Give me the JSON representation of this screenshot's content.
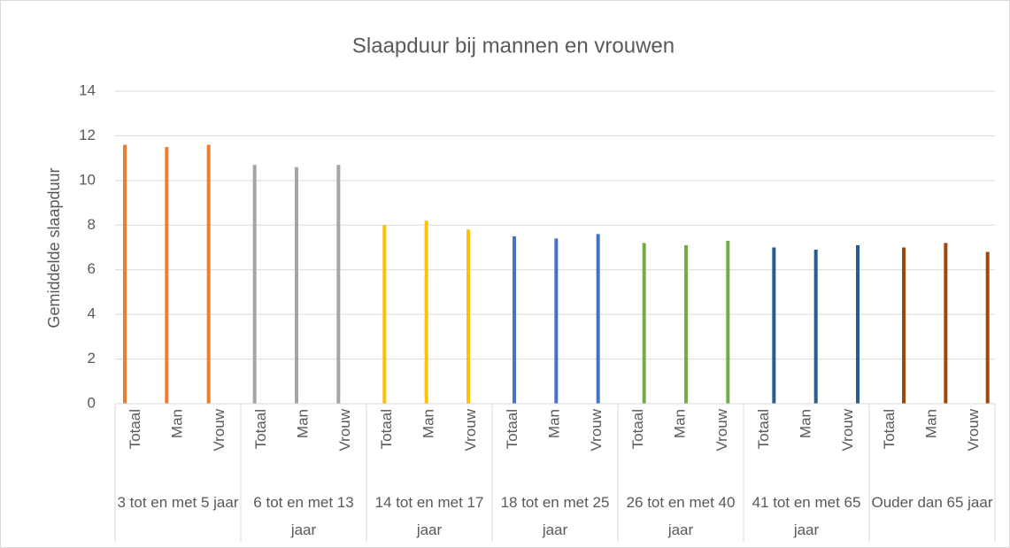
{
  "chart_data": {
    "type": "bar",
    "title": "Slaapduur bij mannen en vrouwen",
    "y_label": "Gemiddelde slaapduur",
    "groups": [
      {
        "name": "3 tot en met 5 jaar",
        "color": "#ED7D31",
        "categories": [
          "Totaal",
          "Man",
          "Vrouw"
        ],
        "values": [
          11.6,
          11.5,
          11.6
        ]
      },
      {
        "name": "6 tot en met 13 jaar",
        "color": "#A5A5A5",
        "categories": [
          "Totaal",
          "Man",
          "Vrouw"
        ],
        "values": [
          10.7,
          10.6,
          10.7
        ]
      },
      {
        "name": "14 tot en met 17 jaar",
        "color": "#FFC000",
        "categories": [
          "Totaal",
          "Man",
          "Vrouw"
        ],
        "values": [
          8.0,
          8.2,
          7.8
        ]
      },
      {
        "name": "18 tot en met 25 jaar",
        "color": "#4472C4",
        "categories": [
          "Totaal",
          "Man",
          "Vrouw"
        ],
        "values": [
          7.5,
          7.4,
          7.6
        ]
      },
      {
        "name": "26 tot en met 40 jaar",
        "color": "#70AD47",
        "categories": [
          "Totaal",
          "Man",
          "Vrouw"
        ],
        "values": [
          7.2,
          7.1,
          7.3
        ]
      },
      {
        "name": "41 tot en met 65 jaar",
        "color": "#255E91",
        "categories": [
          "Totaal",
          "Man",
          "Vrouw"
        ],
        "values": [
          7.0,
          6.9,
          7.1
        ]
      },
      {
        "name": "Ouder dan 65 jaar",
        "color": "#9E480E",
        "categories": [
          "Totaal",
          "Man",
          "Vrouw"
        ],
        "values": [
          7.0,
          7.2,
          6.8
        ]
      }
    ],
    "ylim": [
      0,
      14
    ],
    "yticks": [
      0,
      2,
      4,
      6,
      8,
      10,
      12,
      14
    ],
    "grid": true
  }
}
